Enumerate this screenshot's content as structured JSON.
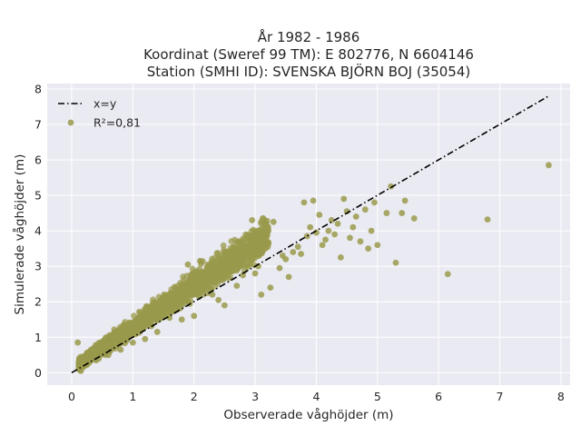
{
  "chart_data": {
    "type": "scatter",
    "title_lines": [
      "År 1982 - 1986",
      "Koordinat (Sweref 99 TM): E 802776, N 6604146",
      "Station (SMHI ID): SVENSKA BJÖRN BOJ (35054)"
    ],
    "xlabel": "Observerade våghöjder (m)",
    "ylabel": "Simulerade våghöjder (m)",
    "xlim": [
      -0.4,
      8.15
    ],
    "ylim": [
      -0.35,
      8.15
    ],
    "xticks": [
      0,
      1,
      2,
      3,
      4,
      5,
      6,
      7,
      8
    ],
    "yticks": [
      0,
      1,
      2,
      3,
      4,
      5,
      6,
      7,
      8
    ],
    "grid": true,
    "legend_position": "top-left",
    "series": [
      {
        "name": "x=y",
        "kind": "line",
        "style": "dash-dot",
        "color": "#000000",
        "x": [
          0,
          7.8
        ],
        "y": [
          0,
          7.8
        ]
      },
      {
        "name": "R²=0,81",
        "kind": "scatter",
        "color": "#9a9a4c",
        "x": [
          7.8,
          6.8,
          6.15,
          5.6,
          5.45,
          5.4,
          5.3,
          5.22,
          5.15,
          5.0,
          4.95,
          4.9,
          4.85,
          4.8,
          4.72,
          4.65,
          4.6,
          4.55,
          4.5,
          4.45,
          4.4,
          4.35,
          4.3,
          4.25,
          4.2,
          4.15,
          4.1,
          4.05,
          4.0,
          3.95,
          3.9,
          3.85,
          3.8,
          3.75,
          3.7,
          3.62,
          3.55,
          3.5,
          3.45,
          3.4,
          3.3,
          3.25,
          3.15,
          3.1,
          3.05,
          3.0,
          2.95,
          2.9,
          2.8,
          2.7,
          2.6,
          2.5,
          2.4,
          2.3,
          2.2,
          2.1,
          2.0,
          1.9,
          1.8,
          1.6,
          1.4,
          1.2,
          1.0,
          0.8,
          0.6,
          0.4,
          0.2,
          0.15,
          0.1
        ],
        "y": [
          5.85,
          4.32,
          2.78,
          4.35,
          4.85,
          4.5,
          3.1,
          5.25,
          4.5,
          3.6,
          4.8,
          4.0,
          3.5,
          4.6,
          3.7,
          4.4,
          4.1,
          3.8,
          4.55,
          4.9,
          3.25,
          4.2,
          3.9,
          4.3,
          4.0,
          3.75,
          3.6,
          4.45,
          3.95,
          4.85,
          4.1,
          3.85,
          4.8,
          3.35,
          3.55,
          3.4,
          2.7,
          3.2,
          3.3,
          2.95,
          4.25,
          2.4,
          4.1,
          2.2,
          3.0,
          2.8,
          4.3,
          3.3,
          2.75,
          2.45,
          2.85,
          1.9,
          2.05,
          2.2,
          2.6,
          3.15,
          1.6,
          3.05,
          1.5,
          1.55,
          1.15,
          0.95,
          0.85,
          0.65,
          0.5,
          0.35,
          0.25,
          0.05,
          0.85
        ]
      }
    ]
  }
}
